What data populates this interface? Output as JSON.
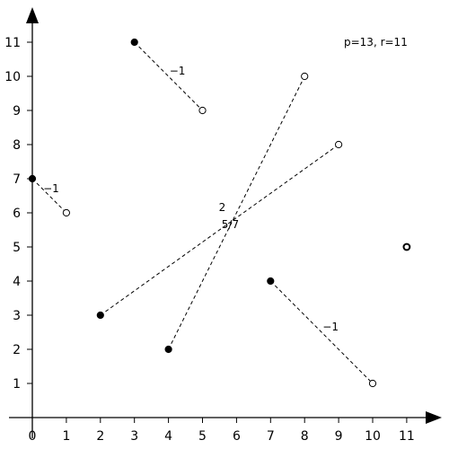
{
  "caption": "p=13, r=11",
  "x_ticks": [
    "0",
    "1",
    "2",
    "3",
    "4",
    "5",
    "6",
    "7",
    "8",
    "9",
    "10",
    "11"
  ],
  "y_ticks": [
    "1",
    "2",
    "3",
    "4",
    "5",
    "6",
    "7",
    "8",
    "9",
    "10",
    "11"
  ],
  "segments": [
    {
      "from": [
        0,
        7
      ],
      "to": [
        1,
        6
      ],
      "slope_label": "−1"
    },
    {
      "from": [
        3,
        11
      ],
      "to": [
        5,
        9
      ],
      "slope_label": "−1"
    },
    {
      "from": [
        2,
        3
      ],
      "to": [
        9,
        8
      ],
      "slope_label": "5/7"
    },
    {
      "from": [
        4,
        2
      ],
      "to": [
        8,
        10
      ],
      "slope_label": "2"
    },
    {
      "from": [
        7,
        4
      ],
      "to": [
        10,
        1
      ],
      "slope_label": "−1"
    }
  ],
  "isolated_points": [
    [
      11,
      5
    ]
  ]
}
